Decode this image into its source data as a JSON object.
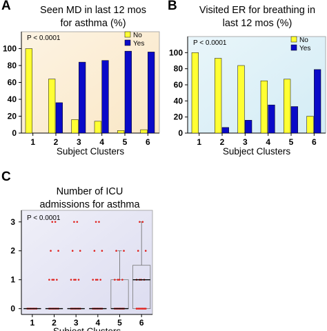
{
  "figure": {
    "panels": [
      {
        "letter": "A",
        "title": "Seen MD in last 12 mos",
        "title2": "for asthma (%)"
      },
      {
        "letter": "B",
        "title": "Visited ER for breathing in",
        "title2": "last 12 mos (%)"
      },
      {
        "letter": "C",
        "title": "Number of ICU",
        "title2": "admissions for asthma"
      }
    ]
  },
  "chart_data": [
    {
      "type": "bar",
      "title": "Seen MD in last 12 mos for asthma (%)",
      "xlabel": "Subject Clusters",
      "ylabel": "",
      "annotation": "P < 0.0001",
      "categories": [
        "1",
        "2",
        "3",
        "4",
        "5",
        "6"
      ],
      "series": [
        {
          "name": "No",
          "values": [
            100,
            64,
            16,
            14,
            3,
            4
          ],
          "color": "#ffff33"
        },
        {
          "name": "Yes",
          "values": [
            0,
            36,
            84,
            86,
            97,
            96
          ],
          "color": "#0a0ac8"
        }
      ],
      "ylim": [
        0,
        120
      ],
      "yticks": [
        0,
        20,
        40,
        60,
        80,
        100
      ],
      "legend_position": "top-right",
      "background": "#fae7c6"
    },
    {
      "type": "bar",
      "title": "Visited ER for breathing in last 12 mos (%)",
      "xlabel": "Subject Clusters",
      "ylabel": "",
      "annotation": "P < 0.0001",
      "categories": [
        "1",
        "2",
        "3",
        "4",
        "5",
        "6"
      ],
      "series": [
        {
          "name": "No",
          "values": [
            100,
            93,
            84,
            65,
            67,
            21
          ],
          "color": "#ffff33"
        },
        {
          "name": "Yes",
          "values": [
            0,
            7,
            16,
            35,
            33,
            79
          ],
          "color": "#0a0ac8"
        }
      ],
      "ylim": [
        0,
        120
      ],
      "yticks": [
        0,
        20,
        40,
        60,
        80,
        100
      ],
      "legend_position": "top-right",
      "background": "#d3ecf5"
    },
    {
      "type": "box",
      "title": "Number of ICU admissions for asthma",
      "xlabel": "Subject Clusters",
      "ylabel": "",
      "annotation": "P < 0.0001",
      "categories": [
        "1",
        "2",
        "3",
        "4",
        "5",
        "6"
      ],
      "ylim": [
        -0.2,
        3.4
      ],
      "yticks": [
        0,
        1,
        2,
        3
      ],
      "point_values": [
        [
          0
        ],
        [
          0,
          1,
          2,
          3
        ],
        [
          0,
          1,
          2,
          3
        ],
        [
          0,
          1,
          2,
          3
        ],
        [
          0,
          1,
          2
        ],
        [
          0,
          1,
          2,
          3
        ]
      ],
      "boxes": [
        {
          "q1": 0,
          "median": 0,
          "q3": 0,
          "whisker_low": 0,
          "whisker_high": 0
        },
        {
          "q1": 0,
          "median": 0,
          "q3": 0,
          "whisker_low": 0,
          "whisker_high": 0
        },
        {
          "q1": 0,
          "median": 0,
          "q3": 0,
          "whisker_low": 0,
          "whisker_high": 0
        },
        {
          "q1": 0,
          "median": 0,
          "q3": 0,
          "whisker_low": 0,
          "whisker_high": 0
        },
        {
          "q1": 0,
          "median": 0,
          "q3": 1,
          "whisker_low": 0,
          "whisker_high": 2
        },
        {
          "q1": 0,
          "median": 1,
          "q3": 1.5,
          "whisker_low": 0,
          "whisker_high": 3
        }
      ],
      "point_color": "#e0201c",
      "background": "#dcdcf0"
    }
  ]
}
